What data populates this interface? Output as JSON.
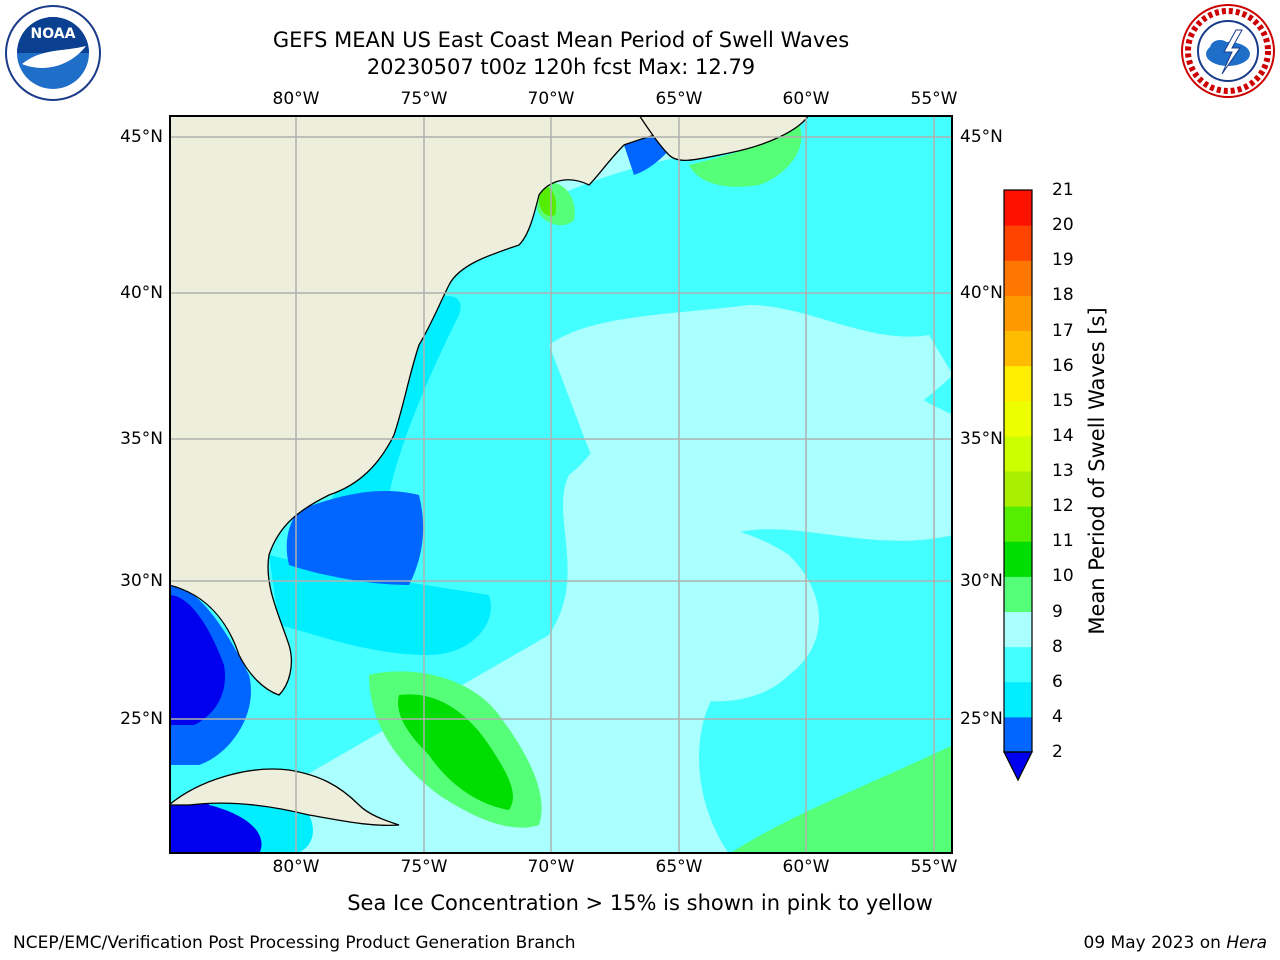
{
  "header": {
    "title_line1": "GEFS MEAN US East Coast Mean Period of Swell Waves",
    "title_line2": "20230507 t00z 120h fcst   Max: 12.79"
  },
  "logos": {
    "left": {
      "name": "noaa-logo",
      "text": "NOAA"
    },
    "right": {
      "name": "nws-logo",
      "text": "NATIONAL WEATHER SERVICE"
    }
  },
  "map": {
    "lon_labels": [
      "80°W",
      "75°W",
      "70°W",
      "65°W",
      "60°W",
      "55°W"
    ],
    "lat_labels": [
      "45°N",
      "40°N",
      "35°N",
      "30°N",
      "25°N"
    ],
    "colors": {
      "land": "#eeeedd",
      "ocean_base": "#aaffff",
      "grid": "#b0b0b0"
    }
  },
  "colorbar": {
    "label": "Mean Period of Swell Waves [s]",
    "ticks": [
      "2",
      "4",
      "6",
      "8",
      "9",
      "10",
      "11",
      "12",
      "13",
      "14",
      "15",
      "16",
      "17",
      "18",
      "19",
      "20",
      "21"
    ],
    "colors": [
      "#0066ff",
      "#00eeff",
      "#44ffff",
      "#aaffff",
      "#55ff77",
      "#00dd00",
      "#55ee00",
      "#aaee00",
      "#ccff00",
      "#eeff00",
      "#ffee00",
      "#ffbb00",
      "#ff9900",
      "#ff7700",
      "#ff4400",
      "#ff1100"
    ],
    "extend_color": "#0000ee"
  },
  "footer": {
    "note": "Sea Ice Concentration > 15% is shown in pink to yellow",
    "credit": "NCEP/EMC/Verification Post Processing Product Generation Branch",
    "date_prefix": "09 May 2023 on ",
    "date_host": "Hera"
  }
}
